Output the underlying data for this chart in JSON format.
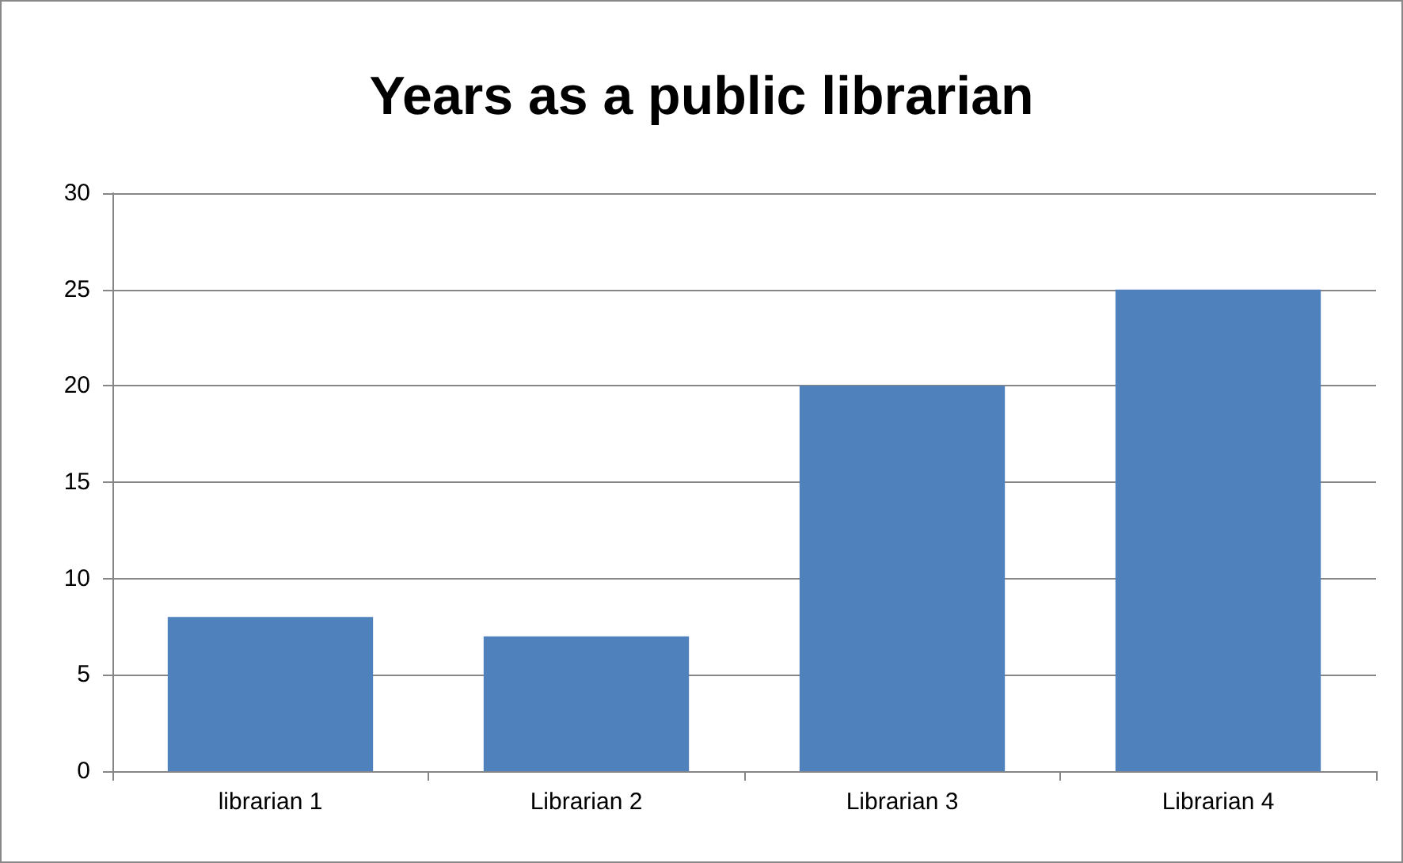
{
  "chart_data": {
    "type": "bar",
    "title": "Years as a public librarian",
    "categories": [
      "librarian 1",
      "Librarian 2",
      "Librarian 3",
      "Librarian 4"
    ],
    "values": [
      8,
      7,
      20,
      25
    ],
    "color": "#4f81bd",
    "ylim": [
      0,
      30
    ],
    "yticks": [
      0,
      5,
      10,
      15,
      20,
      25,
      30
    ],
    "grid": "y"
  }
}
